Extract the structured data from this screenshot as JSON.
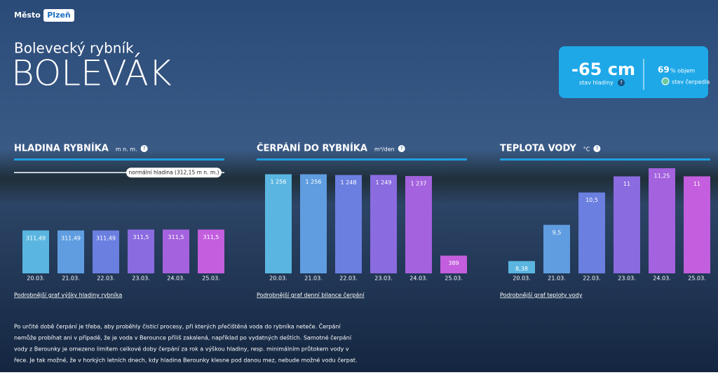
{
  "header": {
    "brand": "Město",
    "city": "Plzeň",
    "subtitle": "Bolevecký rybník",
    "title": "BOLEVÁK"
  },
  "help": "?",
  "status": {
    "level": "-65 cm",
    "level_label": "stav hladiny",
    "volume": "69",
    "volume_unit": "% objem",
    "pump_label": "stav čerpadla"
  },
  "chart_data": [
    {
      "type": "bar",
      "title": "HLADINA RYBNÍKA",
      "unit": "m n. m.",
      "categories": [
        "20.03.",
        "21.03.",
        "22.03.",
        "23.03.",
        "24.03.",
        "25.03."
      ],
      "values": [
        311.49,
        311.49,
        311.49,
        311.5,
        311.5,
        311.5
      ],
      "value_labels": [
        "311,49",
        "311,49",
        "311,49",
        "311,5",
        "311,5",
        "311,5"
      ],
      "colors": [
        "#5ab6e0",
        "#5f9de0",
        "#6b7fe0",
        "#8a6be0",
        "#a462de",
        "#c35ede"
      ],
      "ylim": [
        311,
        312.2
      ],
      "reference": {
        "value": 312.15,
        "label": "normální hladina (312,15 m n. m.)"
      },
      "link": "Podrobnější graf výšky hladiny rybníka"
    },
    {
      "type": "bar",
      "title": "ČERPÁNÍ DO RYBNÍKA",
      "unit": "m³/den",
      "categories": [
        "20.03.",
        "21.03.",
        "22.03.",
        "23.03.",
        "24.03.",
        "25.03."
      ],
      "values": [
        1256,
        1256,
        1248,
        1249,
        1237,
        389
      ],
      "value_labels": [
        "1 256",
        "1 256",
        "1 248",
        "1 249",
        "1 237",
        "389"
      ],
      "colors": [
        "#5ab6e0",
        "#5f9de0",
        "#6b7fe0",
        "#8a6be0",
        "#a462de",
        "#c35ede"
      ],
      "ylim": [
        200,
        1320
      ],
      "link": "Podrobnější graf denní bilance čerpání"
    },
    {
      "type": "bar",
      "title": "TEPLOTA VODY",
      "unit": "°C",
      "categories": [
        "20.03.",
        "21.03.",
        "22.03.",
        "23.03.",
        "24.03.",
        "25.03."
      ],
      "values": [
        8.38,
        9.5,
        10.5,
        11,
        11.25,
        11
      ],
      "value_labels": [
        "8,38",
        "9,5",
        "10,5",
        "11",
        "11,25",
        "11"
      ],
      "colors": [
        "#5ab6e0",
        "#5f9de0",
        "#6b7fe0",
        "#8a6be0",
        "#a462de",
        "#c35ede"
      ],
      "ylim": [
        8,
        11.25
      ],
      "link": "Podrobnější graf teploty vody"
    }
  ],
  "footer": [
    "Po určité době čerpání je třeba, aby proběhly čisticí procesy, při kterých přečištěná voda do rybníka neteče. Čerpání",
    "nemůže probíhat ani v případě, že je voda v Berounce příliš zakalená, například po vydatných deštích. Samotné čerpání",
    "vody z Berounky je omezeno limitem celkové doby čerpání za rok a výškou hladiny, resp. minimálním průtokem vody v",
    "řece. Je tak možné, že v horkých letních dnech, kdy hladina Berounky klesne pod danou mez, nebude možné vodu čerpat."
  ]
}
